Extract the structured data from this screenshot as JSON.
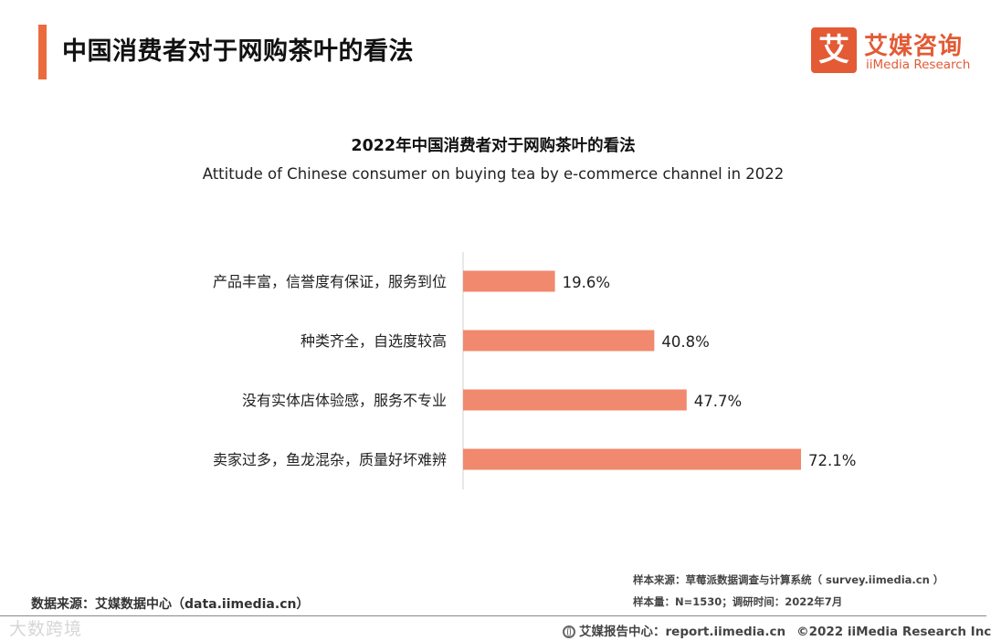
{
  "header": {
    "title": "中国消费者对于网购茶叶的看法",
    "logo_mark": "艾",
    "logo_cn": "艾媒咨询",
    "logo_en": "iiMedia Research"
  },
  "colors": {
    "accent": "#ea6b3d",
    "bar": "#f0896d",
    "brand": "#e35a35"
  },
  "chart_data": {
    "type": "bar",
    "orientation": "horizontal",
    "title": "2022年中国消费者对于网购茶叶的看法",
    "subtitle": "Attitude of Chinese consumer on buying tea by e-commerce channel in 2022",
    "categories": [
      "产品丰富，信誉度有保证，服务到位",
      "种类齐全，自选度较高",
      "没有实体店体验感，服务不专业",
      "卖家过多，鱼龙混杂，质量好坏难辨"
    ],
    "values": [
      19.6,
      40.8,
      47.7,
      72.1
    ],
    "value_labels": [
      "19.6%",
      "40.8%",
      "47.7%",
      "72.1%"
    ],
    "unit": "%",
    "xlim": [
      0,
      72.1
    ],
    "xlabel": "",
    "ylabel": "",
    "grid": false,
    "legend": "none"
  },
  "footer": {
    "source_left": "数据来源：艾媒数据中心（data.iimedia.cn）",
    "source_sample": "样本来源：草莓派数据调查与计算系统（ survey.iimedia.cn ）",
    "sample_info": "样本量：N=1530；调研时间：2022年7月",
    "report_center": "艾媒报告中心：report.iimedia.cn",
    "copyright": "©2022  iiMedia Research  Inc",
    "watermark": "大数跨境"
  }
}
